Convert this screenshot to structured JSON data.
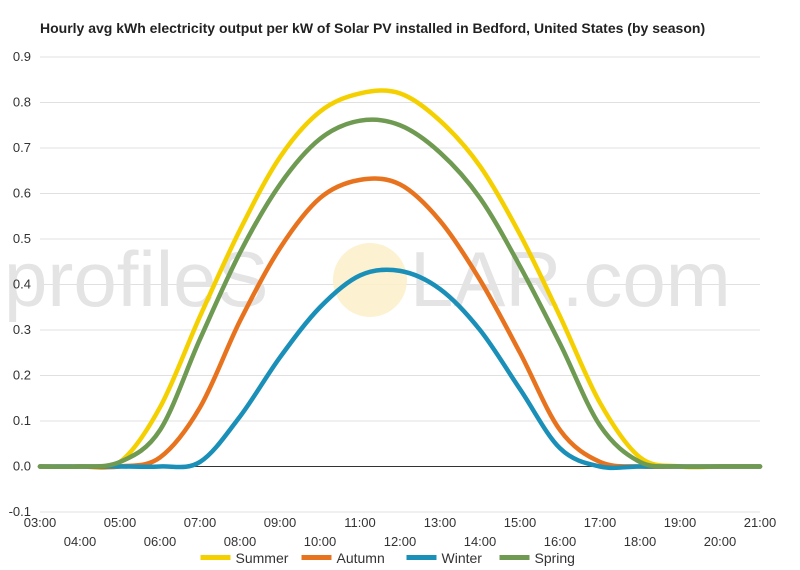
{
  "chart_data": {
    "type": "line",
    "title": "Hourly avg kWh electricity output per kW of Solar PV installed in Bedford, United States (by season)",
    "xlabel": "",
    "ylabel": "",
    "ylim": [
      -0.1,
      0.9
    ],
    "yticks": [
      "0.9",
      "0.8",
      "0.7",
      "0.6",
      "0.5",
      "0.4",
      "0.3",
      "0.2",
      "0.1",
      "0.0",
      "-0.1"
    ],
    "xticks": [
      "03:00",
      "04:00",
      "05:00",
      "06:00",
      "07:00",
      "08:00",
      "09:00",
      "10:00",
      "11:00",
      "12:00",
      "13:00",
      "14:00",
      "15:00",
      "16:00",
      "17:00",
      "18:00",
      "19:00",
      "20:00",
      "21:00"
    ],
    "grid": true,
    "legend_position": "bottom",
    "watermark": {
      "left": "profileS",
      "right": "LAR.com"
    },
    "x": [
      3,
      4,
      5,
      6,
      7,
      8,
      9,
      10,
      11,
      12,
      13,
      14,
      15,
      16,
      17,
      18,
      19,
      20,
      21
    ],
    "series": [
      {
        "name": "Summer",
        "color": "#f5d000",
        "values": [
          0.0,
          0.0,
          0.01,
          0.13,
          0.33,
          0.52,
          0.68,
          0.78,
          0.82,
          0.82,
          0.76,
          0.66,
          0.51,
          0.33,
          0.14,
          0.02,
          0.0,
          0.0,
          0.0
        ]
      },
      {
        "name": "Autumn",
        "color": "#e8731f",
        "values": [
          0.0,
          0.0,
          0.0,
          0.02,
          0.13,
          0.32,
          0.48,
          0.59,
          0.63,
          0.62,
          0.54,
          0.41,
          0.25,
          0.08,
          0.01,
          0.0,
          0.0,
          0.0,
          0.0
        ]
      },
      {
        "name": "Winter",
        "color": "#1a8fb8",
        "values": [
          0.0,
          0.0,
          0.0,
          0.0,
          0.01,
          0.11,
          0.24,
          0.35,
          0.42,
          0.43,
          0.39,
          0.3,
          0.17,
          0.04,
          0.0,
          0.0,
          0.0,
          0.0,
          0.0
        ]
      },
      {
        "name": "Spring",
        "color": "#6f9a52",
        "values": [
          0.0,
          0.0,
          0.01,
          0.08,
          0.28,
          0.47,
          0.62,
          0.72,
          0.76,
          0.75,
          0.69,
          0.59,
          0.44,
          0.27,
          0.09,
          0.01,
          0.0,
          0.0,
          0.0
        ]
      }
    ]
  }
}
